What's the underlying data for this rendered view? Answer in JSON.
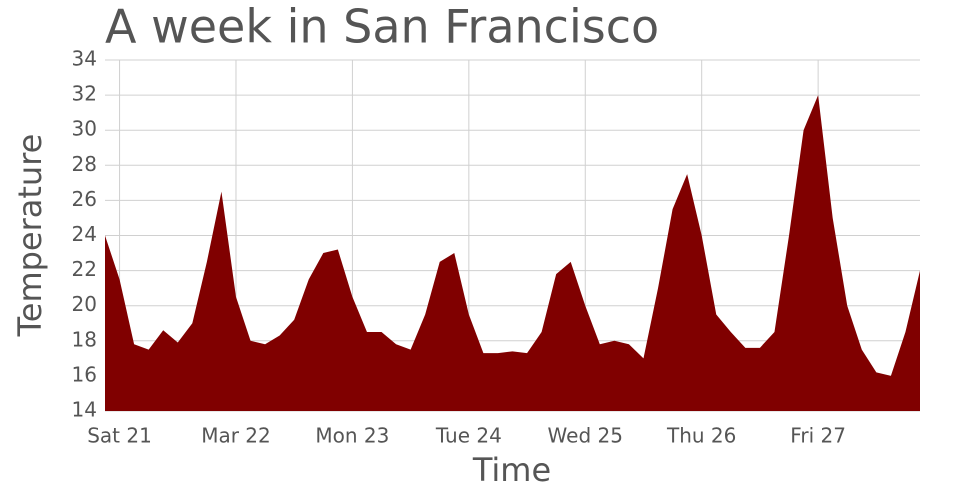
{
  "chart_data": {
    "type": "area",
    "title": "A week in San Francisco",
    "x_label": "Time",
    "y_label": "Temperature",
    "x": [
      -3,
      0,
      3,
      6,
      9,
      12,
      15,
      18,
      21,
      24,
      27,
      30,
      33,
      36,
      39,
      42,
      45,
      48,
      51,
      54,
      57,
      60,
      63,
      66,
      69,
      72,
      75,
      78,
      81,
      84,
      87,
      90,
      93,
      96,
      99,
      102,
      105,
      108,
      111,
      114,
      117,
      120,
      123,
      126,
      129,
      132,
      135,
      138,
      141,
      144,
      147,
      150,
      153,
      156,
      159,
      162,
      165
    ],
    "values": [
      24,
      21.5,
      17.8,
      17.5,
      18.6,
      17.9,
      19,
      22.5,
      26.5,
      20.5,
      18,
      17.8,
      18.3,
      19.2,
      21.5,
      23,
      23.2,
      20.5,
      18.5,
      18.5,
      17.8,
      17.5,
      19.5,
      22.5,
      23,
      19.5,
      17.3,
      17.3,
      17.4,
      17.3,
      18.5,
      21.8,
      22.5,
      20,
      17.8,
      18,
      17.8,
      17,
      21,
      25.5,
      27.5,
      24,
      19.5,
      18.5,
      17.6,
      17.6,
      18.5,
      24,
      30,
      32,
      25,
      20,
      17.5,
      16.2,
      16,
      18.5,
      22
    ],
    "color": "#800000",
    "xlim": [
      -3,
      165
    ],
    "xticks": [
      {
        "value": 0,
        "label": "Sat 21"
      },
      {
        "value": 24,
        "label": "Mar 22"
      },
      {
        "value": 48,
        "label": "Mon 23"
      },
      {
        "value": 72,
        "label": "Tue 24"
      },
      {
        "value": 96,
        "label": "Wed 25"
      },
      {
        "value": 120,
        "label": "Thu 26"
      },
      {
        "value": 144,
        "label": "Fri 27"
      }
    ],
    "ylim": [
      14,
      34
    ],
    "yticks": [
      14,
      16,
      18,
      20,
      22,
      24,
      26,
      28,
      30,
      32,
      34
    ],
    "grid": true
  }
}
